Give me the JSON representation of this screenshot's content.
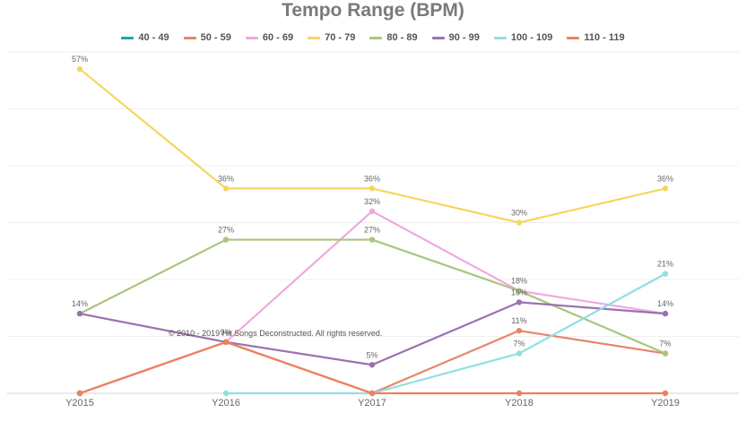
{
  "chart_data": {
    "type": "line",
    "title": "Tempo Range (BPM)",
    "xlabel": "",
    "ylabel": "",
    "categories": [
      "Y2015",
      "Y2016",
      "Y2017",
      "Y2018",
      "Y2019"
    ],
    "ylim": [
      0,
      60
    ],
    "grid": true,
    "legend_position": "top",
    "watermark": "© 2010 - 2019 Hit Songs Deconstructed. All rights reserved.",
    "series": [
      {
        "name": "40 - 49",
        "color": "#1aa7a6",
        "values": [
          0,
          null,
          null,
          null,
          null
        ],
        "labels": [
          null,
          null,
          null,
          null,
          null
        ]
      },
      {
        "name": "50 - 59",
        "color": "#e8856a",
        "values": [
          0,
          9,
          0,
          11,
          7
        ],
        "labels": [
          null,
          null,
          null,
          "11%",
          null
        ]
      },
      {
        "name": "60 - 69",
        "color": "#eea9df",
        "values": [
          0,
          9,
          32,
          18,
          14
        ],
        "labels": [
          null,
          null,
          "32%",
          "18%",
          null
        ]
      },
      {
        "name": "70 - 79",
        "color": "#f5d660",
        "values": [
          57,
          36,
          36,
          30,
          36
        ],
        "labels": [
          "57%",
          "36%",
          "36%",
          "30%",
          "36%"
        ]
      },
      {
        "name": "80 - 89",
        "color": "#a9c67f",
        "values": [
          14,
          27,
          27,
          18,
          7
        ],
        "labels": [
          null,
          "27%",
          "27%",
          null,
          "7%"
        ]
      },
      {
        "name": "90 - 99",
        "color": "#9b72b0",
        "values": [
          14,
          9,
          5,
          16,
          14
        ],
        "labels": [
          "14%",
          "9%",
          "5%",
          "16%",
          "14%"
        ]
      },
      {
        "name": "100 - 109",
        "color": "#8fe0e0",
        "values": [
          null,
          0,
          0,
          7,
          21
        ],
        "labels": [
          null,
          null,
          null,
          "7%",
          "21%"
        ]
      },
      {
        "name": "110 - 119",
        "color": "#ef7f5f",
        "values": [
          0,
          9,
          0,
          0,
          0
        ],
        "labels": [
          null,
          null,
          null,
          null,
          null
        ]
      }
    ]
  }
}
